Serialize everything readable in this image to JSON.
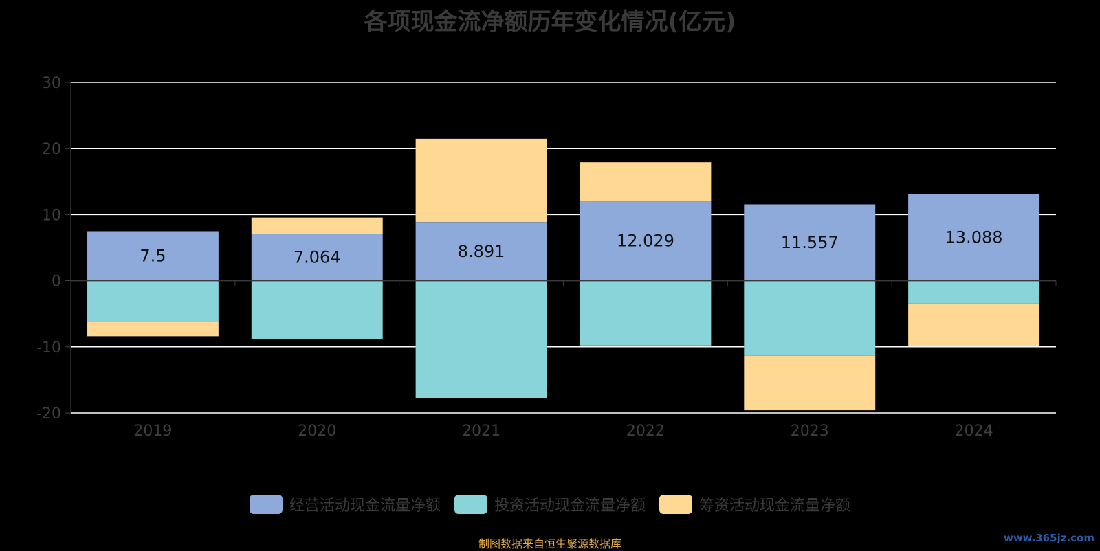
{
  "chart_data": {
    "type": "bar",
    "stacked": true,
    "title": "各项现金流净额历年变化情况(亿元)",
    "categories": [
      "2019",
      "2020",
      "2021",
      "2022",
      "2023",
      "2024"
    ],
    "series": [
      {
        "name": "经营活动现金流量净额",
        "color": "#8eaadb",
        "values": [
          7.5,
          7.064,
          8.891,
          12.029,
          11.557,
          13.088
        ],
        "labels": [
          "7.5",
          "7.064",
          "8.891",
          "12.029",
          "11.557",
          "13.088"
        ]
      },
      {
        "name": "投资活动现金流量净额",
        "color": "#88d4d8",
        "values": [
          -6.2,
          -8.8,
          -17.8,
          -9.8,
          -11.3,
          -3.4
        ]
      },
      {
        "name": "筹资活动现金流量净额",
        "color": "#ffd894",
        "values": [
          -2.2,
          2.5,
          12.6,
          5.9,
          -8.3,
          -6.5
        ]
      }
    ],
    "ylim": [
      -20,
      30
    ],
    "yticks": [
      "-20",
      "-10",
      "0",
      "10",
      "20",
      "30"
    ],
    "grid": true,
    "legend_position": "bottom"
  },
  "footer": {
    "source": "制图数据来自恒生聚源数据库",
    "watermark": "www.365jz.com"
  }
}
